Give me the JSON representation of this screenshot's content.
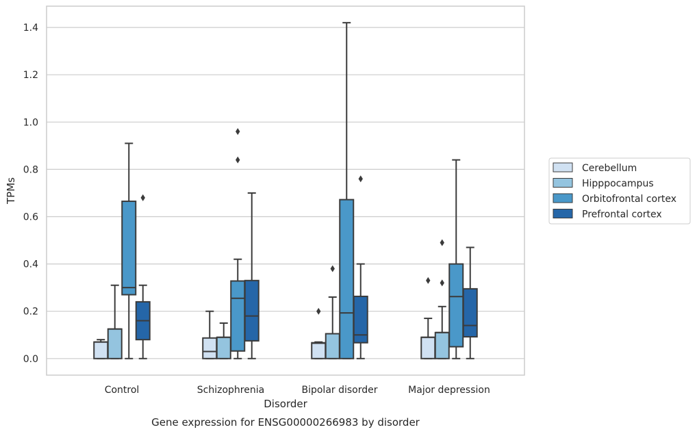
{
  "chart_data": {
    "type": "box",
    "title": "Gene expression for ENSG00000266983 by disorder",
    "xlabel": "Disorder",
    "ylabel": "TPMs",
    "ylim": [
      -0.07,
      1.49
    ],
    "yticks": [
      "0.0",
      "0.2",
      "0.4",
      "0.6",
      "0.8",
      "1.0",
      "1.2",
      "1.4"
    ],
    "ytick_values": [
      0.0,
      0.2,
      0.4,
      0.6,
      0.8,
      1.0,
      1.2,
      1.4
    ],
    "grid": "horizontal",
    "legend_position": "right",
    "categories": [
      "Control",
      "Schizophrenia",
      "Bipolar disorder",
      "Major depression"
    ],
    "series": [
      {
        "name": "Cerebellum",
        "color": "#d0e1f2",
        "boxes": [
          {
            "whislo": 0.0,
            "q1": 0.0,
            "med": 0.07,
            "q3": 0.07,
            "whishi": 0.08,
            "fliers": []
          },
          {
            "whislo": 0.0,
            "q1": 0.0,
            "med": 0.03,
            "q3": 0.087,
            "whishi": 0.2,
            "fliers": []
          },
          {
            "whislo": 0.0,
            "q1": 0.0,
            "med": 0.065,
            "q3": 0.067,
            "whishi": 0.07,
            "fliers": [
              0.2
            ]
          },
          {
            "whislo": 0.0,
            "q1": 0.0,
            "med": 0.09,
            "q3": 0.09,
            "whishi": 0.17,
            "fliers": [
              0.33
            ]
          }
        ]
      },
      {
        "name": "Hipppocampus",
        "color": "#94c4df",
        "boxes": [
          {
            "whislo": 0.0,
            "q1": 0.0,
            "med": 0.125,
            "q3": 0.125,
            "whishi": 0.31,
            "fliers": []
          },
          {
            "whislo": 0.0,
            "q1": 0.0,
            "med": 0.09,
            "q3": 0.09,
            "whishi": 0.15,
            "fliers": []
          },
          {
            "whislo": 0.0,
            "q1": 0.0,
            "med": 0.105,
            "q3": 0.105,
            "whishi": 0.26,
            "fliers": [
              0.38
            ]
          },
          {
            "whislo": 0.0,
            "q1": 0.0,
            "med": 0.11,
            "q3": 0.11,
            "whishi": 0.22,
            "fliers": [
              0.32,
              0.49
            ]
          }
        ]
      },
      {
        "name": "Orbitofrontal cortex",
        "color": "#4a98c9",
        "boxes": [
          {
            "whislo": 0.0,
            "q1": 0.27,
            "med": 0.3,
            "q3": 0.665,
            "whishi": 0.91,
            "fliers": []
          },
          {
            "whislo": 0.0,
            "q1": 0.032,
            "med": 0.255,
            "q3": 0.328,
            "whishi": 0.42,
            "fliers": [
              0.84,
              0.96
            ]
          },
          {
            "whislo": 0.0,
            "q1": 0.0,
            "med": 0.193,
            "q3": 0.672,
            "whishi": 1.42,
            "fliers": []
          },
          {
            "whislo": 0.0,
            "q1": 0.05,
            "med": 0.262,
            "q3": 0.4,
            "whishi": 0.84,
            "fliers": []
          }
        ]
      },
      {
        "name": "Prefrontal cortex",
        "color": "#2566a8",
        "boxes": [
          {
            "whislo": 0.0,
            "q1": 0.08,
            "med": 0.16,
            "q3": 0.24,
            "whishi": 0.31,
            "fliers": [
              0.68
            ]
          },
          {
            "whislo": 0.0,
            "q1": 0.075,
            "med": 0.18,
            "q3": 0.33,
            "whishi": 0.7,
            "fliers": []
          },
          {
            "whislo": 0.0,
            "q1": 0.067,
            "med": 0.1,
            "q3": 0.263,
            "whishi": 0.4,
            "fliers": [
              0.76
            ]
          },
          {
            "whislo": 0.0,
            "q1": 0.092,
            "med": 0.14,
            "q3": 0.295,
            "whishi": 0.47,
            "fliers": []
          }
        ]
      }
    ]
  },
  "colors": {
    "box_edge": "#3b3b3b",
    "grid": "#cccccc",
    "axes_edge": "#cccccc",
    "text": "#262626"
  }
}
